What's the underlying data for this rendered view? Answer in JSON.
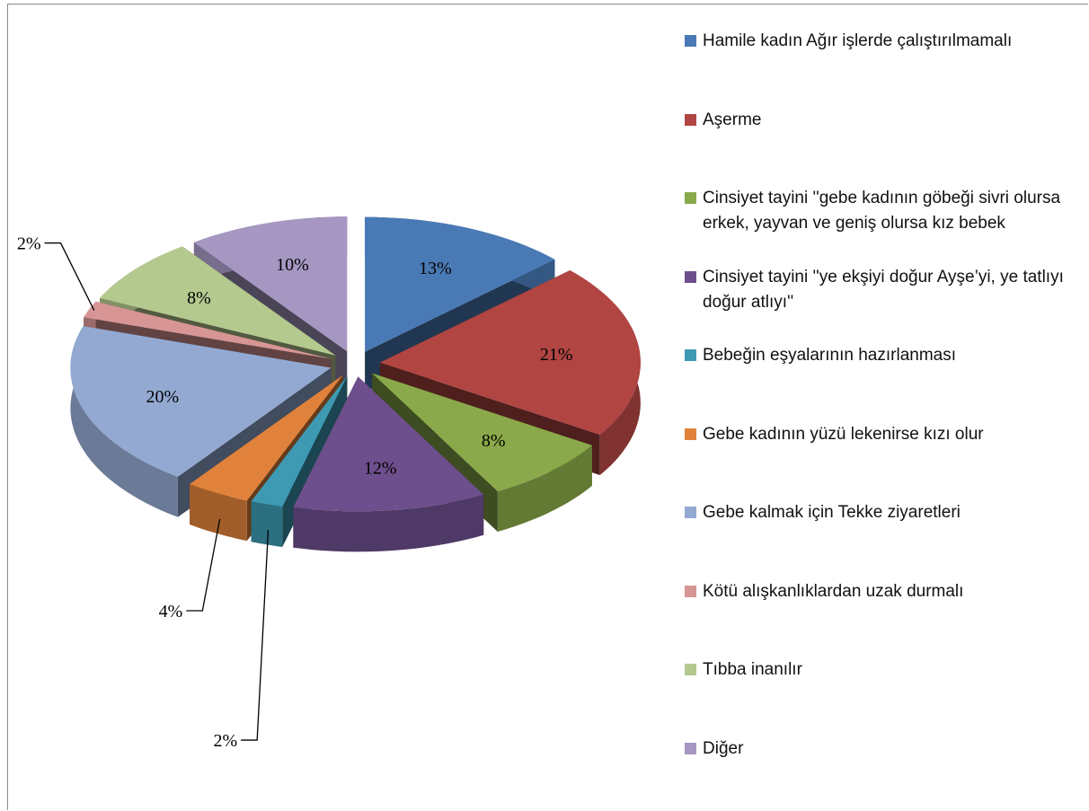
{
  "chart_data": {
    "type": "pie3d",
    "categories": [
      "Hamile kadın Ağır işlerde çalıştırılmamalı",
      "Aşerme",
      "Cinsiyet tayini ''gebe kadının göbeği sivri olursa erkek, yayvan ve geniş olursa kız bebek",
      "Cinsiyet tayini ''ye ekşiyi doğur Ayşe’yi, ye tatlıyı doğur atlıyı''",
      "Bebeğin eşyalarının hazırlanması",
      "Gebe kadının yüzü lekenirse kızı olur",
      "Gebe kalmak için Tekke ziyaretleri",
      "Kötü alışkanlıklardan uzak durmalı",
      "Tıbba inanılır",
      "Diğer"
    ],
    "values": [
      13,
      21,
      8,
      12,
      2,
      4,
      20,
      2,
      8,
      10
    ],
    "value_labels": [
      "13%",
      "21%",
      "8%",
      "12%",
      "2%",
      "4%",
      "20%",
      "2%",
      "8%",
      "10%"
    ],
    "colors": [
      "#4a7ab5",
      "#b04542",
      "#8aa94a",
      "#6e4f8d",
      "#3d9ab2",
      "#e0823b",
      "#93a9d2",
      "#d79595",
      "#b4c98e",
      "#a597c2"
    ],
    "legend": "right"
  }
}
